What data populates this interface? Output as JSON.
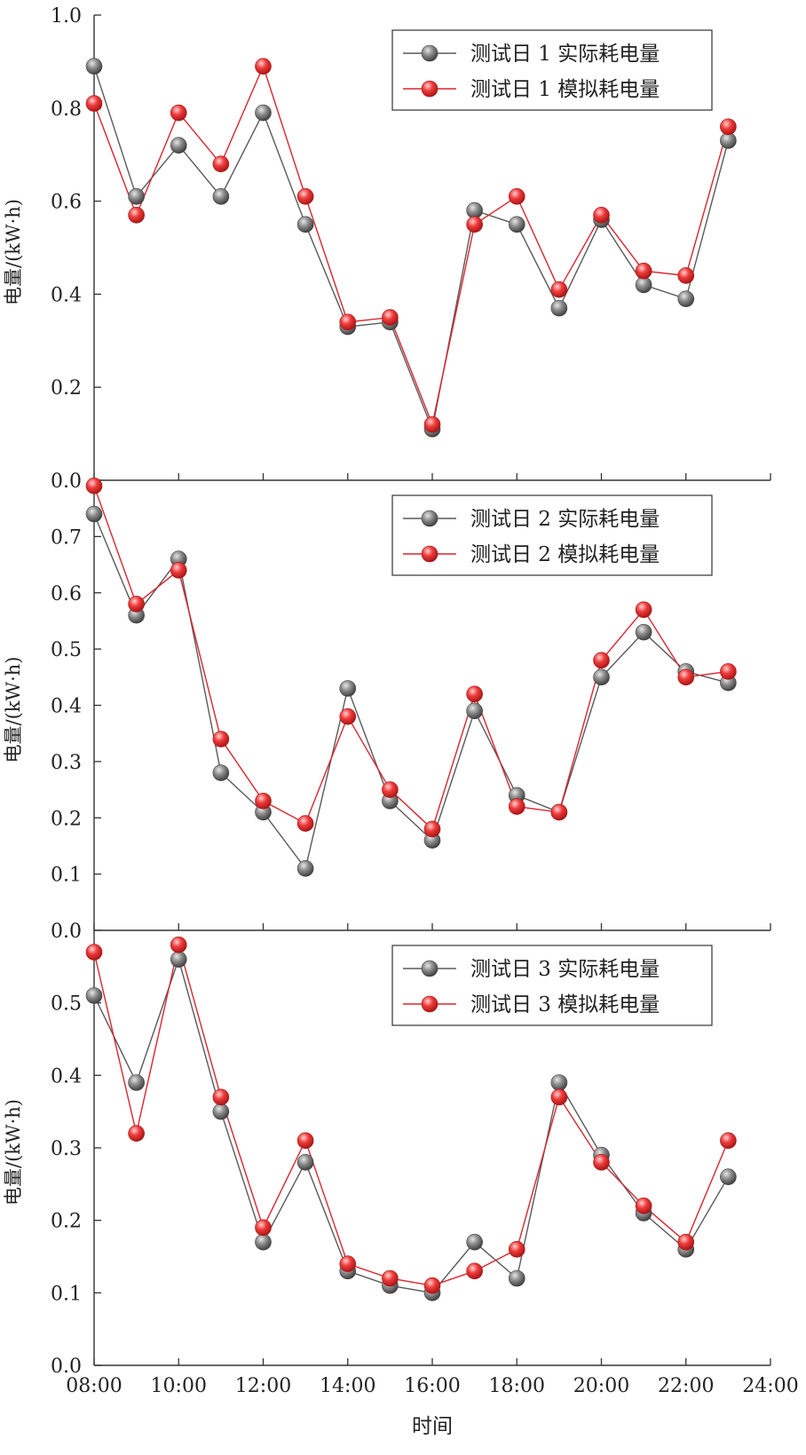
{
  "chart_data": [
    {
      "type": "line",
      "categories": [
        "08:00",
        "09:00",
        "10:00",
        "11:00",
        "12:00",
        "13:00",
        "14:00",
        "15:00",
        "16:00",
        "17:00",
        "18:00",
        "19:00",
        "20:00",
        "21:00",
        "22:00",
        "23:00"
      ],
      "ylabel": "电量/(kW·h)",
      "ylim": [
        0,
        1.0
      ],
      "yticks": [
        "0.0",
        "0.2",
        "0.4",
        "0.6",
        "0.8",
        "1.0"
      ],
      "ytick_values": [
        0,
        0.2,
        0.4,
        0.6,
        0.8,
        1.0
      ],
      "legend_position": "top-right",
      "series": [
        {
          "name": "测试日 1 实际耗电量",
          "color": "#808080",
          "values": [
            0.89,
            0.61,
            0.72,
            0.61,
            0.79,
            0.55,
            0.33,
            0.34,
            0.11,
            0.58,
            0.55,
            0.37,
            0.56,
            0.42,
            0.39,
            0.73
          ]
        },
        {
          "name": "测试日 1 模拟耗电量",
          "color": "#e8434a",
          "values": [
            0.81,
            0.57,
            0.79,
            0.68,
            0.89,
            0.61,
            0.34,
            0.35,
            0.12,
            0.55,
            0.61,
            0.41,
            0.57,
            0.45,
            0.44,
            0.76
          ]
        }
      ]
    },
    {
      "type": "line",
      "categories": [
        "08:00",
        "09:00",
        "10:00",
        "11:00",
        "12:00",
        "13:00",
        "14:00",
        "15:00",
        "16:00",
        "17:00",
        "18:00",
        "19:00",
        "20:00",
        "21:00",
        "22:00",
        "23:00"
      ],
      "ylabel": "电量/(kW·h)",
      "ylim": [
        0,
        0.8
      ],
      "yticks": [
        "0.0",
        "0.1",
        "0.2",
        "0.3",
        "0.4",
        "0.5",
        "0.6",
        "0.7"
      ],
      "ytick_values": [
        0,
        0.1,
        0.2,
        0.3,
        0.4,
        0.5,
        0.6,
        0.7
      ],
      "legend_position": "top-right",
      "series": [
        {
          "name": "测试日 2 实际耗电量",
          "color": "#808080",
          "values": [
            0.74,
            0.56,
            0.66,
            0.28,
            0.21,
            0.11,
            0.43,
            0.23,
            0.16,
            0.39,
            0.24,
            0.21,
            0.45,
            0.53,
            0.46,
            0.44
          ]
        },
        {
          "name": "测试日 2 模拟耗电量",
          "color": "#e8434a",
          "values": [
            0.79,
            0.58,
            0.64,
            0.34,
            0.23,
            0.19,
            0.38,
            0.25,
            0.18,
            0.42,
            0.22,
            0.21,
            0.48,
            0.57,
            0.45,
            0.46
          ]
        }
      ]
    },
    {
      "type": "line",
      "categories": [
        "08:00",
        "09:00",
        "10:00",
        "11:00",
        "12:00",
        "13:00",
        "14:00",
        "15:00",
        "16:00",
        "17:00",
        "18:00",
        "19:00",
        "20:00",
        "21:00",
        "22:00",
        "23:00"
      ],
      "ylabel": "电量/(kW·h)",
      "xlabel": "时间",
      "xticks": [
        "08:00",
        "10:00",
        "12:00",
        "14:00",
        "16:00",
        "18:00",
        "20:00",
        "22:00",
        "24:00"
      ],
      "ylim": [
        0,
        0.6
      ],
      "yticks": [
        "0.0",
        "0.1",
        "0.2",
        "0.3",
        "0.4",
        "0.5"
      ],
      "ytick_values": [
        0,
        0.1,
        0.2,
        0.3,
        0.4,
        0.5
      ],
      "legend_position": "top-right",
      "series": [
        {
          "name": "测试日 3 实际耗电量",
          "color": "#808080",
          "values": [
            0.51,
            0.39,
            0.56,
            0.35,
            0.17,
            0.28,
            0.13,
            0.11,
            0.1,
            0.17,
            0.12,
            0.39,
            0.29,
            0.21,
            0.16,
            0.26
          ]
        },
        {
          "name": "测试日 3 模拟耗电量",
          "color": "#e8434a",
          "values": [
            0.57,
            0.32,
            0.58,
            0.37,
            0.19,
            0.31,
            0.14,
            0.12,
            0.11,
            0.13,
            0.16,
            0.37,
            0.28,
            0.22,
            0.17,
            0.31
          ]
        }
      ]
    }
  ]
}
